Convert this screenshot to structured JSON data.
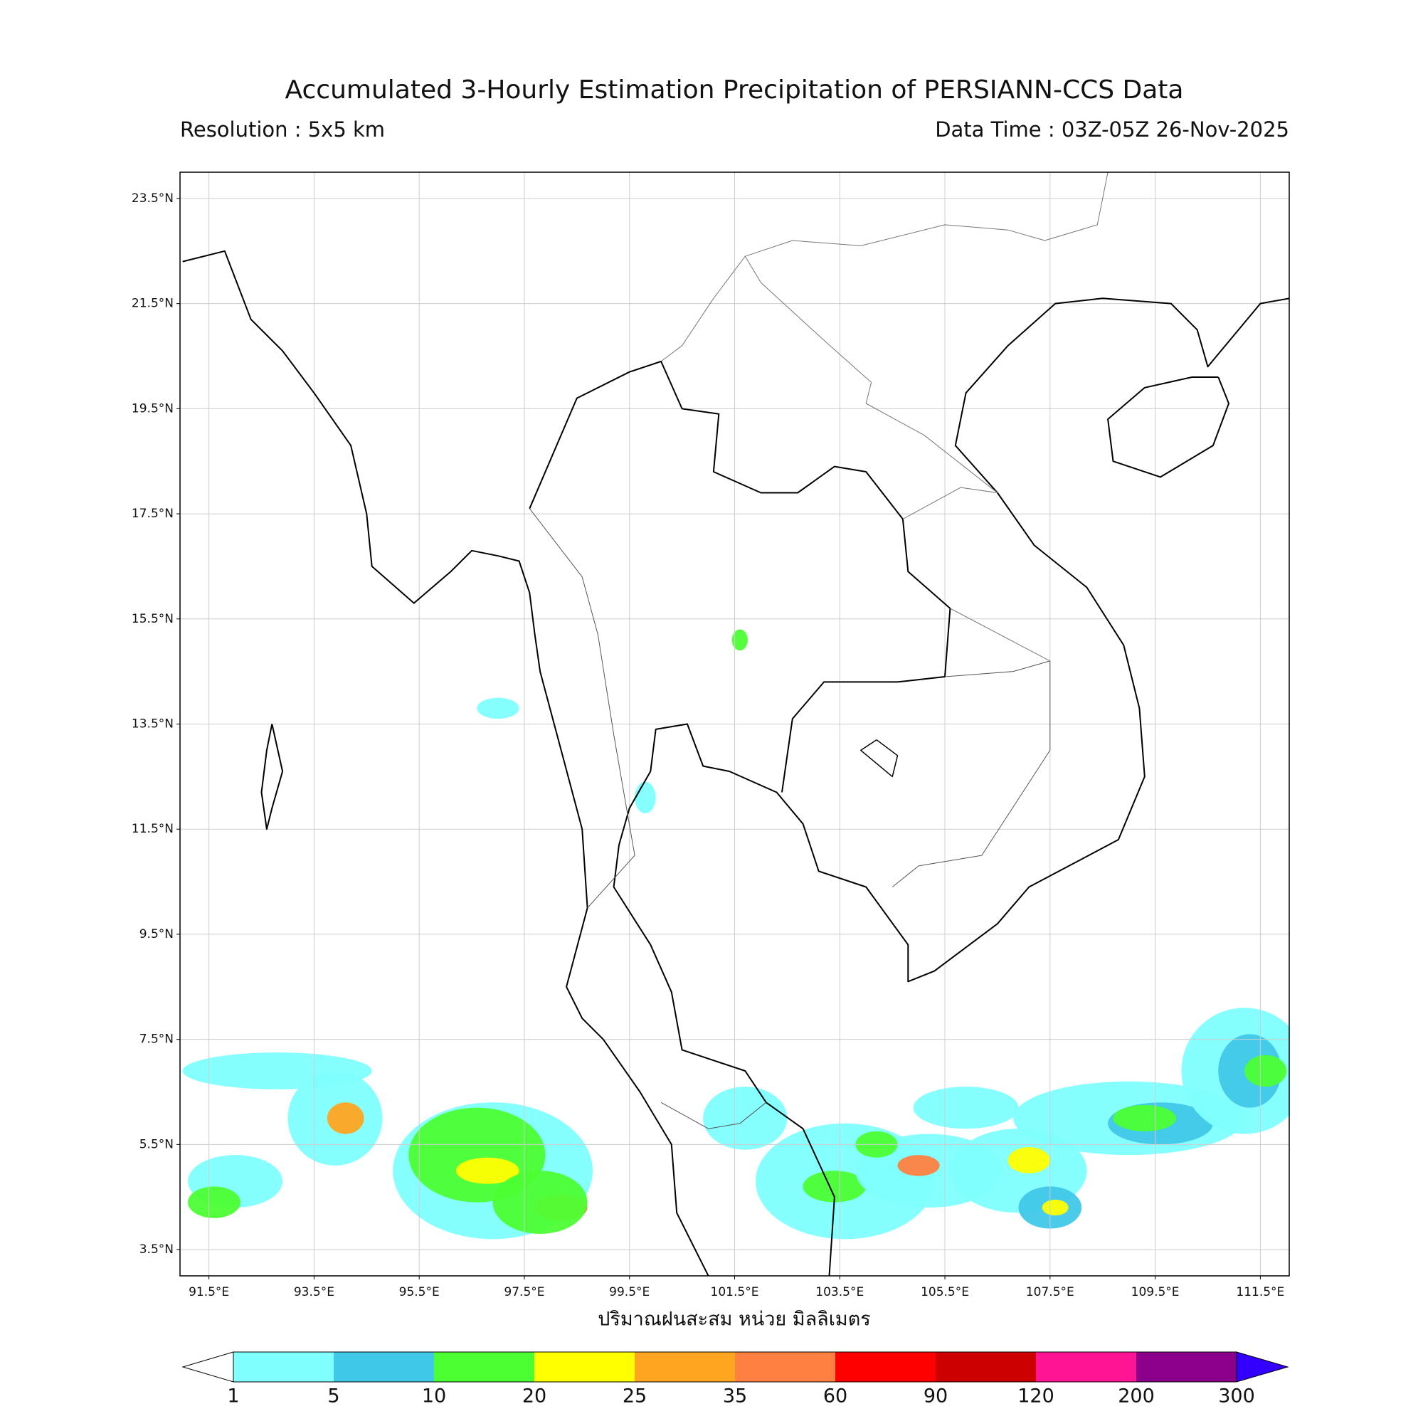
{
  "title": "Accumulated 3-Hourly Estimation Precipitation of PERSIANN-CCS Data",
  "resolution": "Resolution : 5x5 km",
  "data_time": "Data Time : 03Z-05Z 26-Nov-2025",
  "map": {
    "xlim": [
      90.95,
      112.05
    ],
    "ylim": [
      3.0,
      24.0
    ],
    "xticks": [
      {
        "value": 91.5,
        "label": "91.5°E"
      },
      {
        "value": 93.5,
        "label": "93.5°E"
      },
      {
        "value": 95.5,
        "label": "95.5°E"
      },
      {
        "value": 97.5,
        "label": "97.5°E"
      },
      {
        "value": 99.5,
        "label": "99.5°E"
      },
      {
        "value": 101.5,
        "label": "101.5°E"
      },
      {
        "value": 103.5,
        "label": "103.5°E"
      },
      {
        "value": 105.5,
        "label": "105.5°E"
      },
      {
        "value": 107.5,
        "label": "107.5°E"
      },
      {
        "value": 109.5,
        "label": "109.5°E"
      },
      {
        "value": 111.5,
        "label": "111.5°E"
      }
    ],
    "yticks": [
      {
        "value": 3.5,
        "label": "3.5°N"
      },
      {
        "value": 5.5,
        "label": "5.5°N"
      },
      {
        "value": 7.5,
        "label": "7.5°N"
      },
      {
        "value": 9.5,
        "label": "9.5°N"
      },
      {
        "value": 11.5,
        "label": "11.5°N"
      },
      {
        "value": 13.5,
        "label": "13.5°N"
      },
      {
        "value": 15.5,
        "label": "15.5°N"
      },
      {
        "value": 17.5,
        "label": "17.5°N"
      },
      {
        "value": 19.5,
        "label": "19.5°N"
      },
      {
        "value": 21.5,
        "label": "21.5°N"
      },
      {
        "value": 23.5,
        "label": "23.5°N"
      }
    ],
    "grid": true,
    "xlabel": "ปริมาณฝนสะสม หน่วย มิลลิเมตร"
  },
  "colorbar": {
    "levels": [
      1,
      5,
      10,
      20,
      25,
      35,
      60,
      90,
      120,
      200,
      300
    ],
    "colors": [
      "#80ffff",
      "#40c8e8",
      "#4cff33",
      "#ffff00",
      "#ffa520",
      "#ff8040",
      "#ff0000",
      "#cc0000",
      "#ff1493",
      "#8b008b"
    ],
    "under_color": "#ffffff",
    "over_color": "#3300ff"
  }
}
